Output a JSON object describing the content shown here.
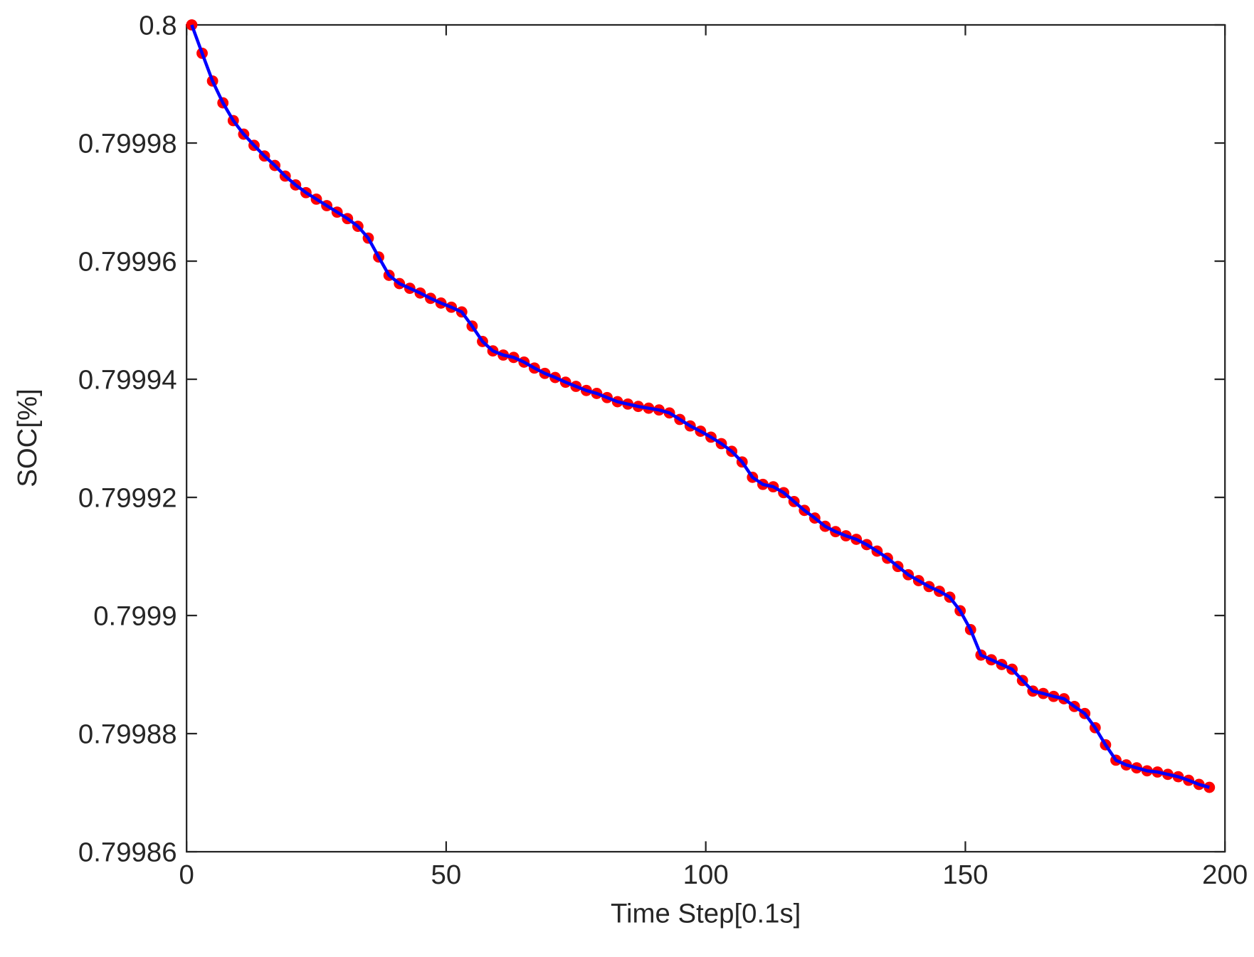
{
  "chart_data": {
    "type": "line",
    "xlabel": "Time Step[0.1s]",
    "ylabel": "SOC[%]",
    "x": [
      1,
      3,
      5,
      7,
      9,
      11,
      13,
      15,
      17,
      19,
      21,
      23,
      25,
      27,
      29,
      31,
      33,
      35,
      37,
      39,
      41,
      43,
      45,
      47,
      49,
      51,
      53,
      55,
      57,
      59,
      61,
      63,
      65,
      67,
      69,
      71,
      73,
      75,
      77,
      79,
      81,
      83,
      85,
      87,
      89,
      91,
      93,
      95,
      97,
      99,
      101,
      103,
      105,
      107,
      109,
      111,
      113,
      115,
      117,
      119,
      121,
      123,
      125,
      127,
      129,
      131,
      133,
      135,
      137,
      139,
      141,
      143,
      145,
      147,
      149,
      151,
      153,
      155,
      157,
      159,
      161,
      163,
      165,
      167,
      169,
      171,
      173,
      175,
      177,
      179,
      181,
      183,
      185,
      187,
      189,
      191,
      193,
      195,
      197
    ],
    "values": [
      0.8,
      0.7999952,
      0.7999905,
      0.7999868,
      0.7999838,
      0.7999815,
      0.7999796,
      0.7999778,
      0.7999762,
      0.7999744,
      0.7999729,
      0.7999716,
      0.7999705,
      0.7999694,
      0.7999683,
      0.7999672,
      0.7999659,
      0.7999639,
      0.7999607,
      0.7999576,
      0.7999562,
      0.7999554,
      0.7999546,
      0.7999537,
      0.7999529,
      0.7999522,
      0.7999514,
      0.799949,
      0.7999464,
      0.7999448,
      0.7999441,
      0.7999437,
      0.7999429,
      0.7999419,
      0.799941,
      0.7999403,
      0.7999395,
      0.7999388,
      0.7999381,
      0.7999376,
      0.7999369,
      0.7999362,
      0.7999358,
      0.7999354,
      0.7999351,
      0.7999348,
      0.7999343,
      0.7999332,
      0.7999321,
      0.7999312,
      0.7999302,
      0.7999291,
      0.7999278,
      0.799926,
      0.7999234,
      0.7999222,
      0.7999218,
      0.7999208,
      0.7999193,
      0.7999178,
      0.7999165,
      0.7999151,
      0.7999142,
      0.7999135,
      0.7999129,
      0.799912,
      0.7999109,
      0.7999097,
      0.7999083,
      0.7999069,
      0.7999059,
      0.7999049,
      0.7999041,
      0.7999031,
      0.7999008,
      0.7998976,
      0.7998933,
      0.7998925,
      0.7998917,
      0.7998909,
      0.799889,
      0.7998872,
      0.7998868,
      0.7998863,
      0.7998859,
      0.7998846,
      0.7998834,
      0.799881,
      0.7998781,
      0.7998755,
      0.7998747,
      0.7998742,
      0.7998737,
      0.7998735,
      0.7998731,
      0.7998727,
      0.7998721,
      0.7998714,
      0.7998709
    ],
    "color": "#0000ff",
    "marker_color": "#ff0000",
    "xlim": [
      0,
      200
    ],
    "xticks": [
      0,
      50,
      100,
      150,
      200
    ],
    "ylim": [
      0.79986,
      0.8
    ],
    "yticks": [
      0.79986,
      0.79988,
      0.7999,
      0.79992,
      0.79994,
      0.79996,
      0.79998,
      0.8
    ]
  }
}
